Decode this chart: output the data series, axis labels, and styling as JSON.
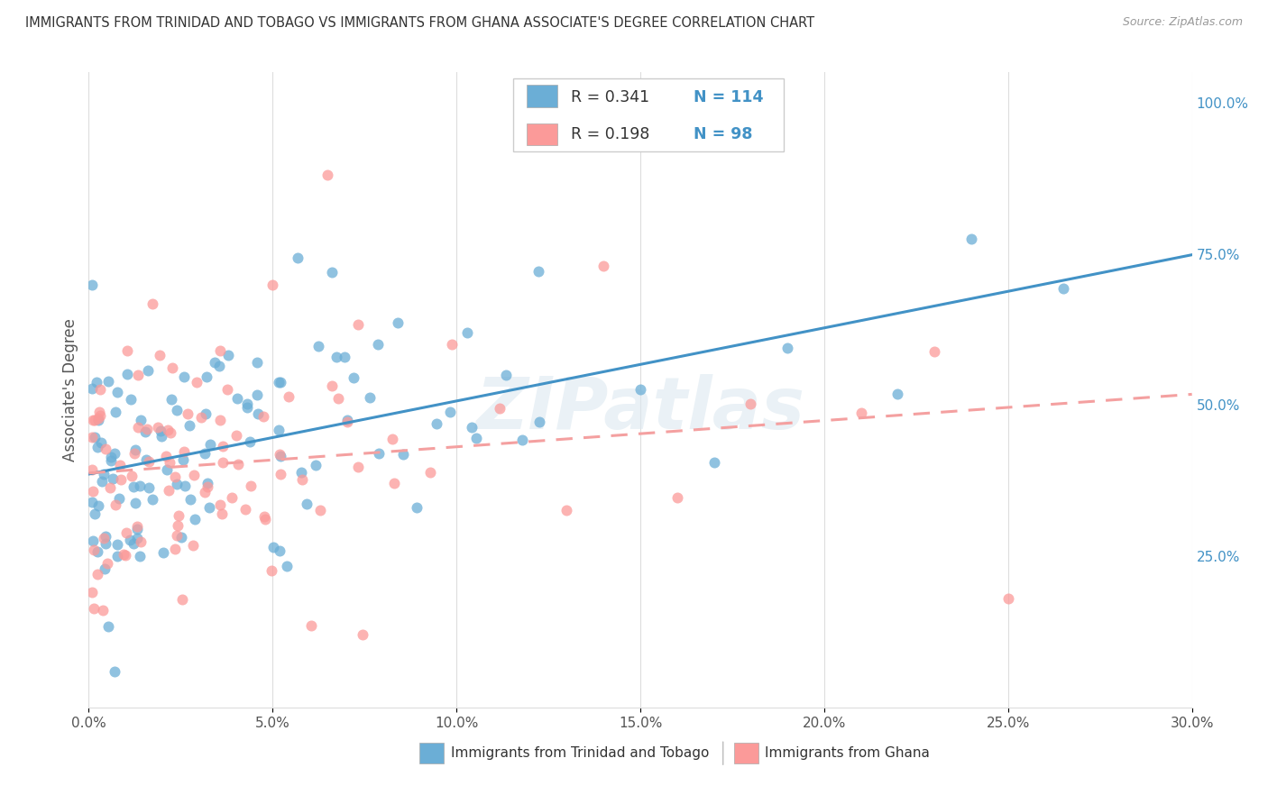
{
  "title": "IMMIGRANTS FROM TRINIDAD AND TOBAGO VS IMMIGRANTS FROM GHANA ASSOCIATE'S DEGREE CORRELATION CHART",
  "source": "Source: ZipAtlas.com",
  "ylabel": "Associate's Degree",
  "ytick_labels": [
    "25.0%",
    "50.0%",
    "75.0%",
    "100.0%"
  ],
  "ytick_values": [
    0.25,
    0.5,
    0.75,
    1.0
  ],
  "xlim": [
    0.0,
    0.3
  ],
  "ylim": [
    0.0,
    1.05
  ],
  "watermark": "ZIPatlas",
  "legend_r1": "R = 0.341",
  "legend_n1": "N = 114",
  "legend_r2": "R = 0.198",
  "legend_n2": "N = 98",
  "color_tt": "#6baed6",
  "color_ghana": "#fb9a99",
  "color_tt_line": "#4292c6",
  "color_ghana_line_dashed": "#f4a0a0",
  "label_tt": "Immigrants from Trinidad and Tobago",
  "label_ghana": "Immigrants from Ghana",
  "blue_text_color": "#4292c6",
  "grid_color": "#dddddd",
  "title_color": "#333333",
  "source_color": "#999999"
}
